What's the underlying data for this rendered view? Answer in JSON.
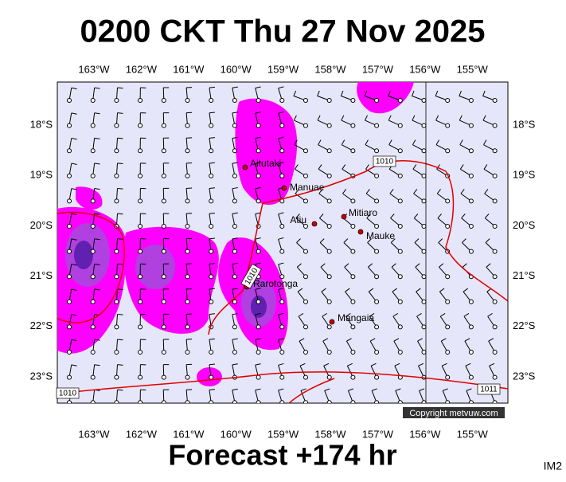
{
  "header": {
    "title": "0200 CKT Thu 27 Nov 2025"
  },
  "map": {
    "lon_labels": [
      "163°W",
      "162°W",
      "161°W",
      "160°W",
      "159°W",
      "158°W",
      "157°W",
      "156°W",
      "155°W"
    ],
    "lat_labels": [
      "18°S",
      "19°S",
      "20°S",
      "21°S",
      "22°S",
      "23°S"
    ],
    "places": [
      "Aitutaki",
      "Manuae",
      "Atiu",
      "Mitiaro",
      "Mauke",
      "Rarotonga",
      "Mangaia"
    ],
    "isobar_labels": [
      "1010",
      "1010",
      "1010",
      "1011"
    ],
    "copyright": "Copyright metvuw.com"
  },
  "footer": {
    "forecast": "Forecast +174 hr",
    "code": "IM2"
  }
}
